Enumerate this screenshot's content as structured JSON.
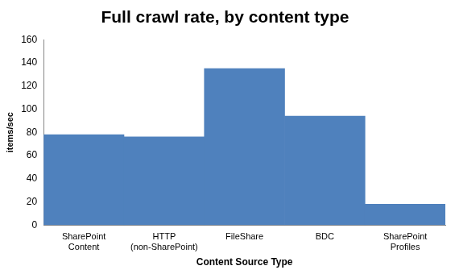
{
  "chart_data": {
    "type": "bar",
    "title": "Full crawl rate, by content type",
    "x_label": "Content Source Type",
    "y_label": "items/sec",
    "categories": [
      "SharePoint Content",
      "HTTP (non-SharePoint)",
      "FileShare",
      "BDC",
      "SharePoint Profiles"
    ],
    "values": [
      78,
      76,
      135,
      94,
      18
    ],
    "color": "#4f81bd",
    "ylim": [
      0,
      160
    ],
    "yticks": [
      0,
      20,
      40,
      60,
      80,
      100,
      120,
      140,
      160
    ],
    "grid": false
  }
}
